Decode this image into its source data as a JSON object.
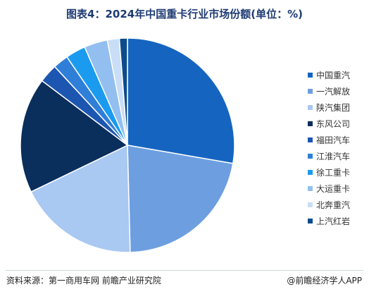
{
  "chart_data": {
    "type": "pie",
    "title": "图表4：2024年中国重卡行业市场份额(单位：%)",
    "slices": [
      {
        "label": "中国重汽",
        "value": 27.5,
        "color": "#1565c0"
      },
      {
        "label": "一汽解放",
        "value": 21.7,
        "color": "#6d9fe0"
      },
      {
        "label": "陕汽集团",
        "value": 18.1,
        "color": "#a9c8f2"
      },
      {
        "label": "东风公司",
        "value": 17.3,
        "color": "#0b2f5c"
      },
      {
        "label": "福田汽车",
        "value": 2.8,
        "color": "#1d56b0"
      },
      {
        "label": "江淮汽车",
        "value": 2.3,
        "color": "#2f7fd8"
      },
      {
        "label": "徐工重卡",
        "value": 3.0,
        "color": "#1a9bf0"
      },
      {
        "label": "大运重卡",
        "value": 3.5,
        "color": "#93bff0"
      },
      {
        "label": "北奔重汽",
        "value": 1.8,
        "color": "#c9def6"
      },
      {
        "label": "上汽红岩",
        "value": 1.2,
        "color": "#0d4b8c"
      }
    ],
    "legend_position": "right"
  },
  "footer": {
    "source": "资料来源：第一商用车网 前瞻产业研究院",
    "brand": "@前瞻经济学人APP"
  }
}
